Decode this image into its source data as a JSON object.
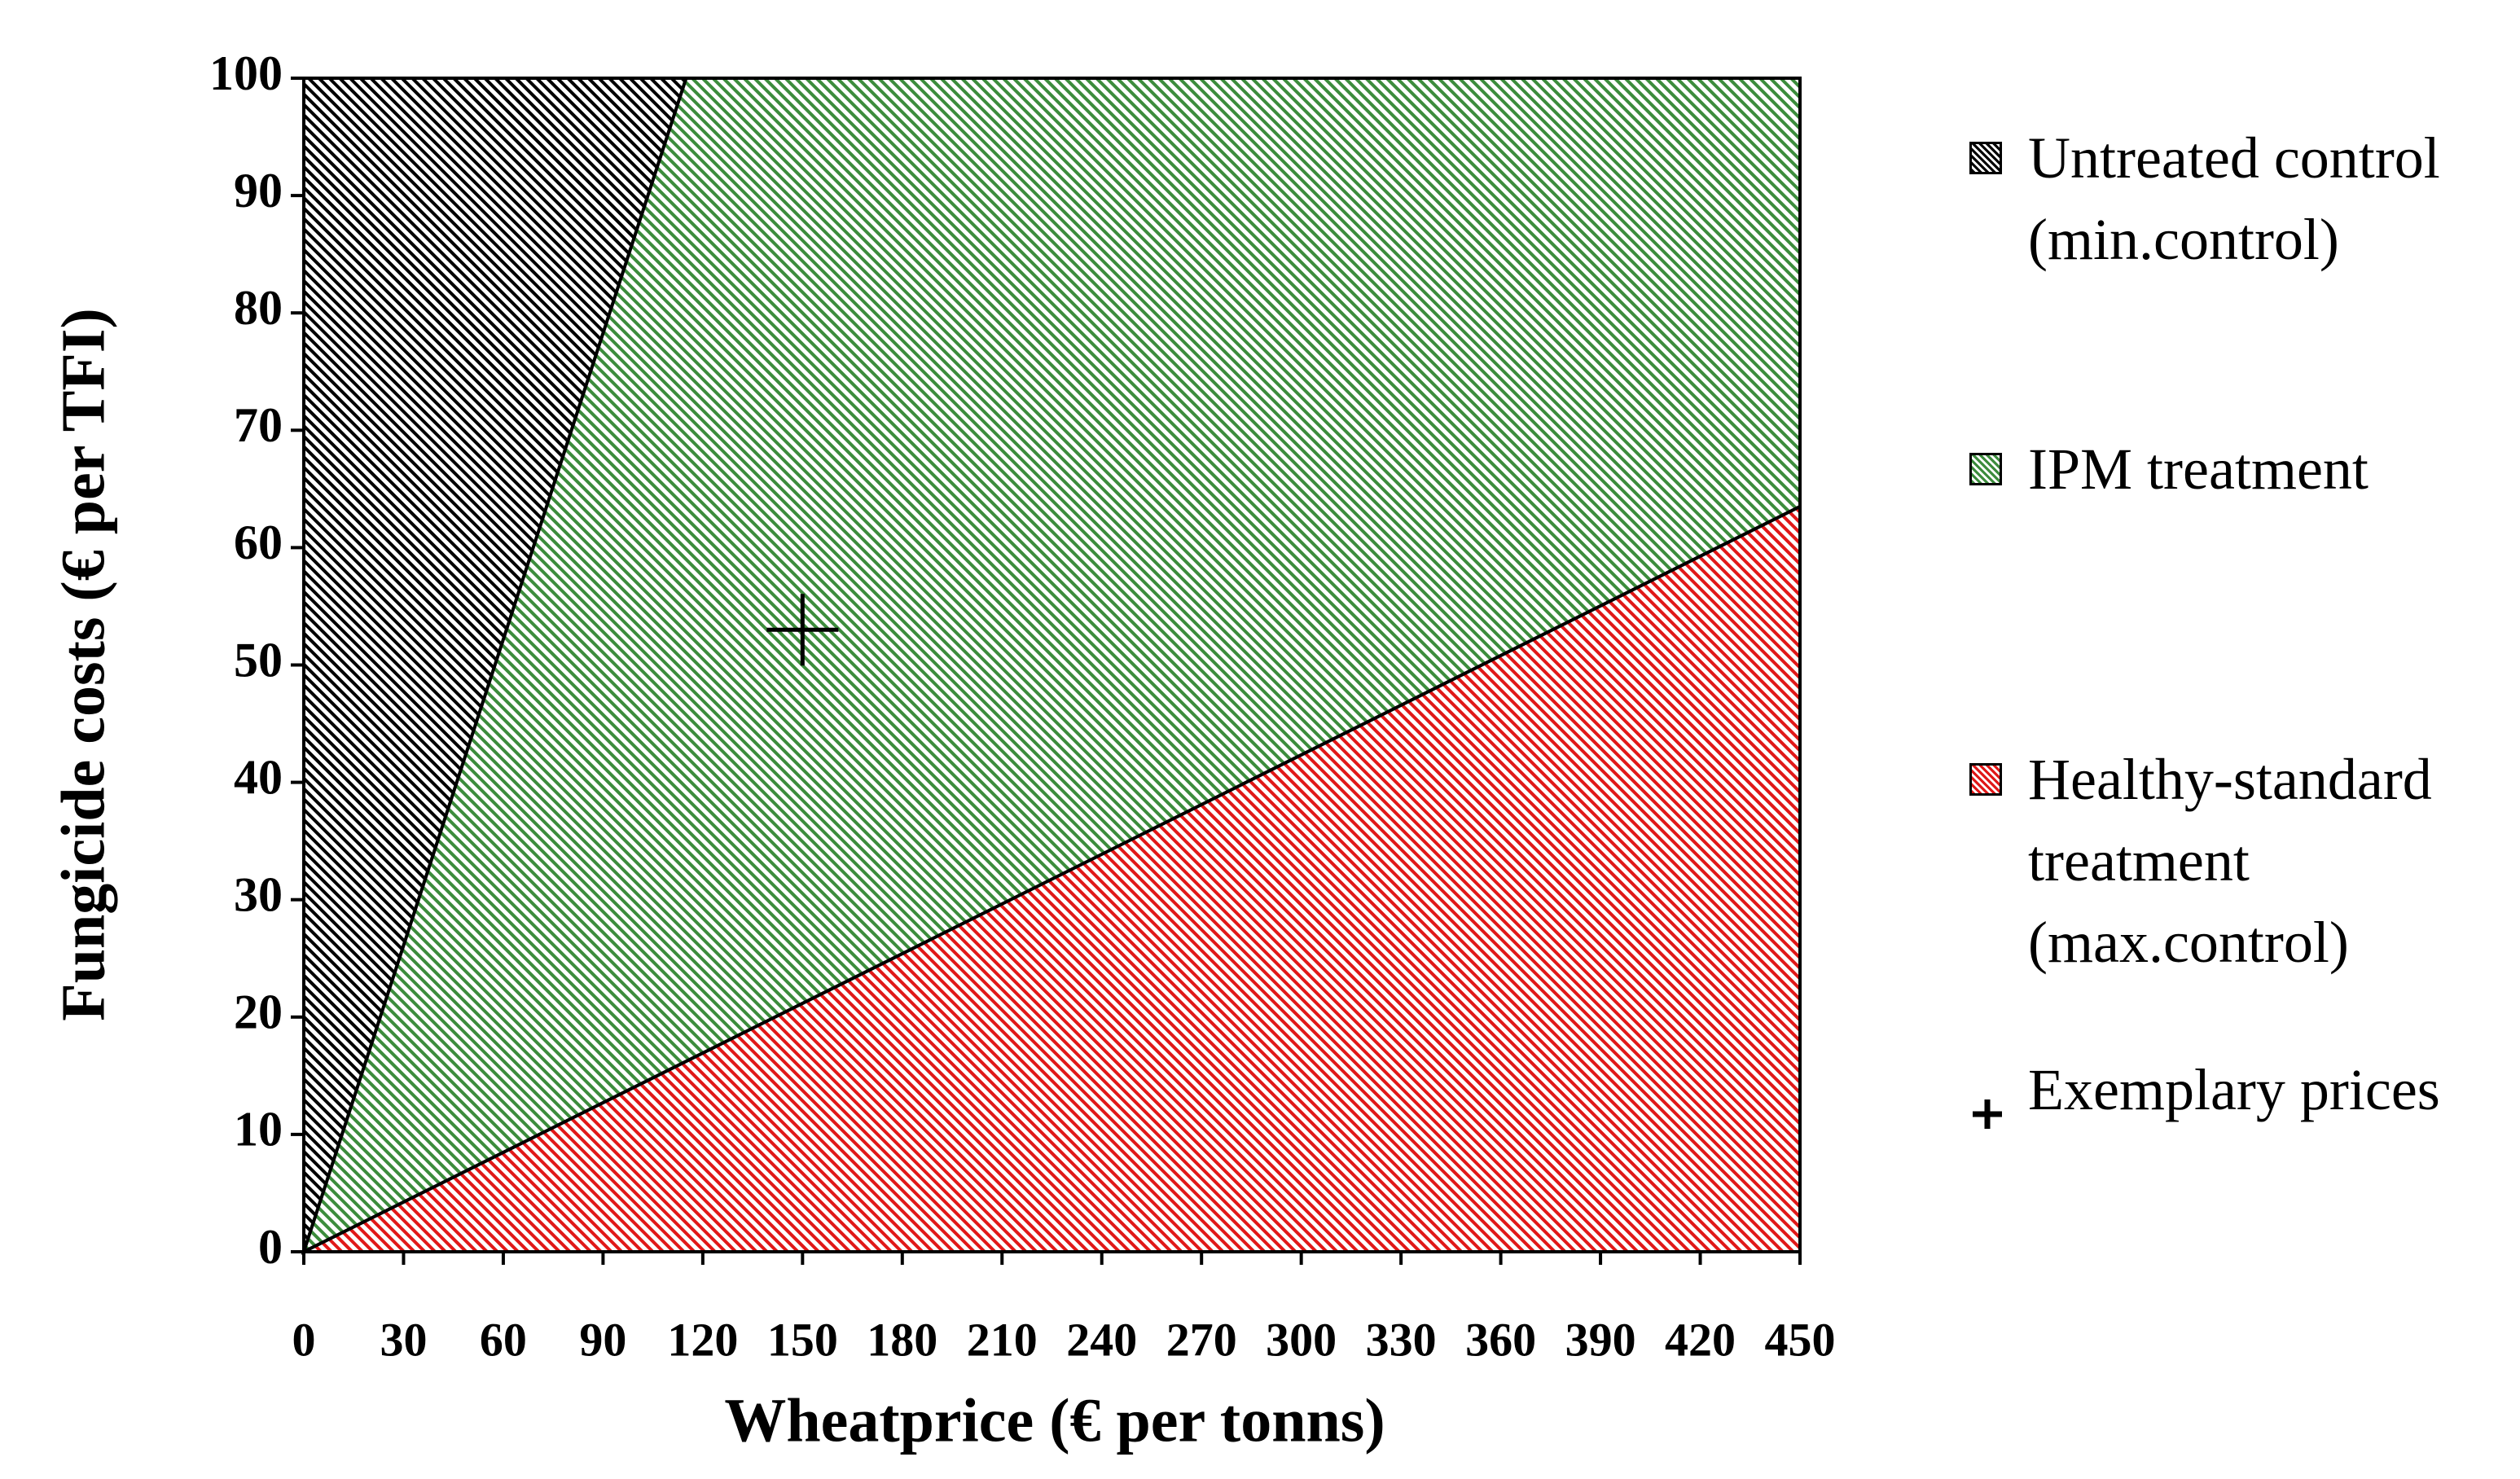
{
  "chart_data": {
    "type": "area",
    "x_label": "Wheatprice (€ per tonns)",
    "y_label": "Fungicide costs (€ per TFI)",
    "xlim": [
      0,
      450
    ],
    "ylim": [
      0,
      100
    ],
    "xticks": [
      0,
      30,
      60,
      90,
      120,
      150,
      180,
      210,
      240,
      270,
      300,
      330,
      360,
      390,
      420,
      450
    ],
    "yticks": [
      0,
      10,
      20,
      30,
      40,
      50,
      60,
      70,
      80,
      90,
      100
    ],
    "series": [
      {
        "name": "Untreated control\n(min.control)",
        "color": "#000000",
        "x": [
          0,
          0,
          115
        ],
        "values": [
          0,
          100,
          100
        ]
      },
      {
        "name": "IPM treatment",
        "color": "#3c8c3c",
        "x": [
          0,
          115,
          450,
          450
        ],
        "values": [
          0,
          100,
          100,
          63.5
        ]
      },
      {
        "name": "Healthy-standard\ntreatment\n(max.control)",
        "color": "#e01818",
        "x": [
          0,
          450,
          450
        ],
        "values": [
          0,
          0,
          63.5
        ]
      },
      {
        "name": "Exemplary prices",
        "color": "#000000",
        "marker": "plus",
        "x": [
          150
        ],
        "values": [
          53
        ]
      }
    ]
  }
}
